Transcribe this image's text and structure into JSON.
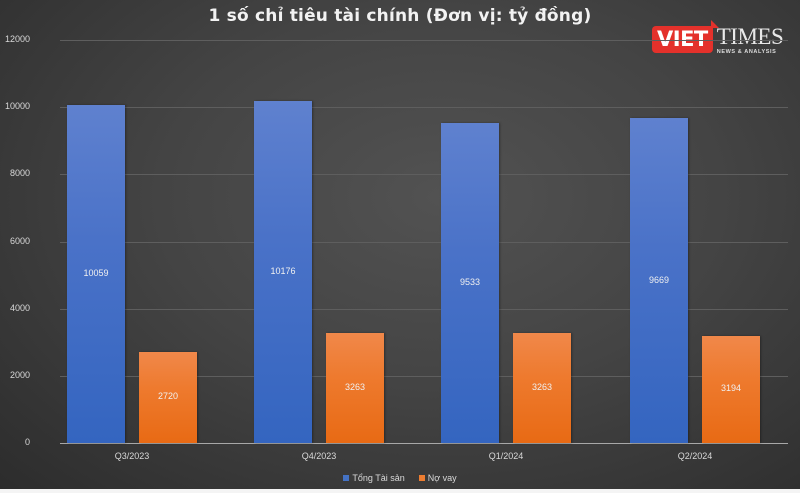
{
  "title": "1 số chỉ tiêu tài chính (Đơn vị: tỷ đồng)",
  "logo": {
    "brand_left": "VIET",
    "brand_right": "TIMES",
    "tagline": "NEWS & ANALYSIS"
  },
  "colors": {
    "tong_tai_san": "#4472C4",
    "no_vay": "#ED7D31",
    "background": "#444444"
  },
  "chart_data": {
    "type": "bar",
    "title": "1 số chỉ tiêu tài chính (Đơn vị: tỷ đồng)",
    "xlabel": "",
    "ylabel": "",
    "ylim": [
      0,
      12000
    ],
    "yticks": [
      0,
      2000,
      4000,
      6000,
      8000,
      10000,
      12000
    ],
    "grid": true,
    "legend_position": "bottom",
    "categories": [
      "Q3/2023",
      "Q4/2023",
      "Q1/2024",
      "Q2/2024"
    ],
    "series": [
      {
        "name": "Tổng Tài sản",
        "color": "#4472C4",
        "values": [
          10059,
          10176,
          9533,
          9669
        ]
      },
      {
        "name": "Nợ vay",
        "color": "#ED7D31",
        "values": [
          2720,
          3263,
          3263,
          3194
        ]
      }
    ]
  },
  "yticks_labels": [
    "0",
    "2000",
    "4000",
    "6000",
    "8000",
    "10000",
    "12000"
  ],
  "legend": [
    "Tổng Tài sản",
    "Nợ vay"
  ]
}
